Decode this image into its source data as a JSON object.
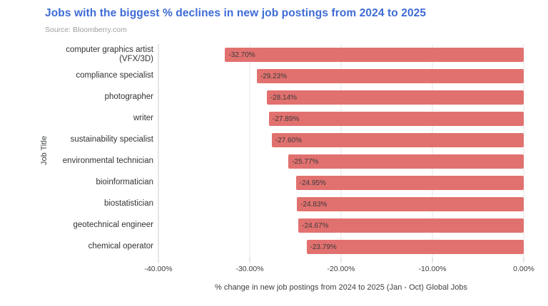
{
  "header": {
    "title": "Jobs with the biggest % declines in new job postings from 2024 to 2025",
    "source": "Source: Bloomberry.com"
  },
  "colors": {
    "title_blue": "#3e6bd6",
    "bar_fill": "#e1716f",
    "source_gray": "#9e9e9e",
    "gridline": "#e4e4e4",
    "axis_line": "#cccccc",
    "label_text": "#333333"
  },
  "chart_data": {
    "type": "bar",
    "orientation": "horizontal",
    "title": "Jobs with the biggest % declines in new job postings from 2024 to 2025",
    "categories": [
      "computer graphics artist (VFX/3D)",
      "compliance specialist",
      "photographer",
      "writer",
      "sustainability specialist",
      "environmental technician",
      "bioinformatician",
      "biostatistician",
      "geotechnical engineer",
      "chemical operator"
    ],
    "values": [
      -32.7,
      -29.23,
      -28.14,
      -27.89,
      -27.6,
      -25.77,
      -24.95,
      -24.83,
      -24.67,
      -23.79
    ],
    "value_labels": [
      "-32.70%",
      "-29.23%",
      "-28.14%",
      "-27.89%",
      "-27.60%",
      "-25.77%",
      "-24.95%",
      "-24.83%",
      "-24.67%",
      "-23.79%"
    ],
    "xlabel": "% change in new job postings from 2024 to 2025 (Jan - Oct) Global Jobs",
    "ylabel": "Job Title",
    "xlim": [
      -40,
      0
    ],
    "xticks": [
      "-40.00%",
      "-30.00%",
      "-20.00%",
      "-10.00%",
      "0.00%"
    ],
    "grid": true,
    "legend": "none",
    "bar_labels_inside": true
  }
}
